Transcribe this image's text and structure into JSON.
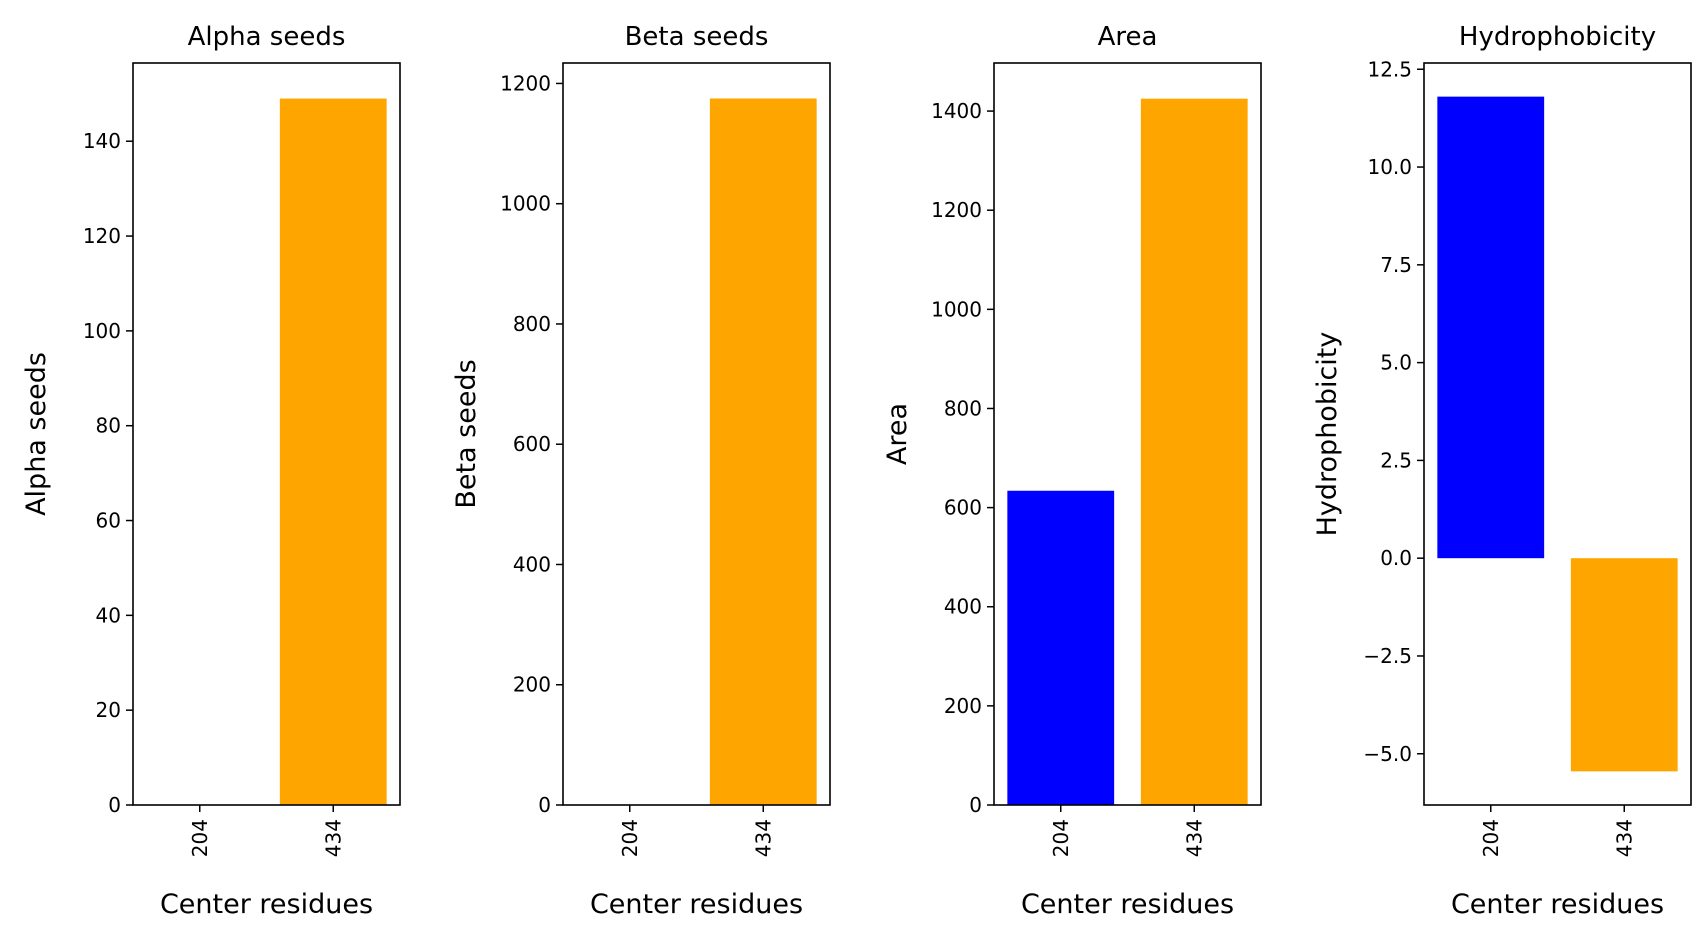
{
  "chart_data": [
    {
      "type": "bar",
      "title": "Alpha seeds",
      "xlabel": "Center residues",
      "ylabel": "Alpha seeds",
      "categories": [
        "204",
        "434"
      ],
      "values": [
        0,
        149
      ],
      "colors": [
        "#0000ff",
        "#ffa500"
      ],
      "ylim": [
        0,
        156.5
      ],
      "yticks": [
        0,
        20,
        40,
        60,
        80,
        100,
        120,
        140
      ],
      "ytick_labels": [
        "0",
        "20",
        "40",
        "60",
        "80",
        "100",
        "120",
        "140"
      ],
      "grid": false
    },
    {
      "type": "bar",
      "title": "Beta seeds",
      "xlabel": "Center residues",
      "ylabel": "Beta seeds",
      "categories": [
        "204",
        "434"
      ],
      "values": [
        0,
        1175
      ],
      "colors": [
        "#0000ff",
        "#ffa500"
      ],
      "ylim": [
        0,
        1234
      ],
      "yticks": [
        0,
        200,
        400,
        600,
        800,
        1000,
        1200
      ],
      "ytick_labels": [
        "0",
        "200",
        "400",
        "600",
        "800",
        "1000",
        "1200"
      ],
      "grid": false
    },
    {
      "type": "bar",
      "title": "Area",
      "xlabel": "Center residues",
      "ylabel": "Area",
      "categories": [
        "204",
        "434"
      ],
      "values": [
        634,
        1425
      ],
      "colors": [
        "#0000ff",
        "#ffa500"
      ],
      "ylim": [
        0,
        1497
      ],
      "yticks": [
        0,
        200,
        400,
        600,
        800,
        1000,
        1200,
        1400
      ],
      "ytick_labels": [
        "0",
        "200",
        "400",
        "600",
        "800",
        "1000",
        "1200",
        "1400"
      ],
      "grid": false
    },
    {
      "type": "bar",
      "title": "Hydrophobicity",
      "xlabel": "Center residues",
      "ylabel": "Hydrophobicity",
      "categories": [
        "204",
        "434"
      ],
      "values": [
        11.8,
        -5.45
      ],
      "colors": [
        "#0000ff",
        "#ffa500"
      ],
      "ylim": [
        -6.31,
        12.66
      ],
      "yticks": [
        -5,
        -2.5,
        0,
        2.5,
        5,
        7.5,
        10,
        12.5
      ],
      "ytick_labels": [
        "−5.0",
        "−2.5",
        "0.0",
        "2.5",
        "5.0",
        "7.5",
        "10.0",
        "12.5"
      ],
      "grid": false
    }
  ]
}
